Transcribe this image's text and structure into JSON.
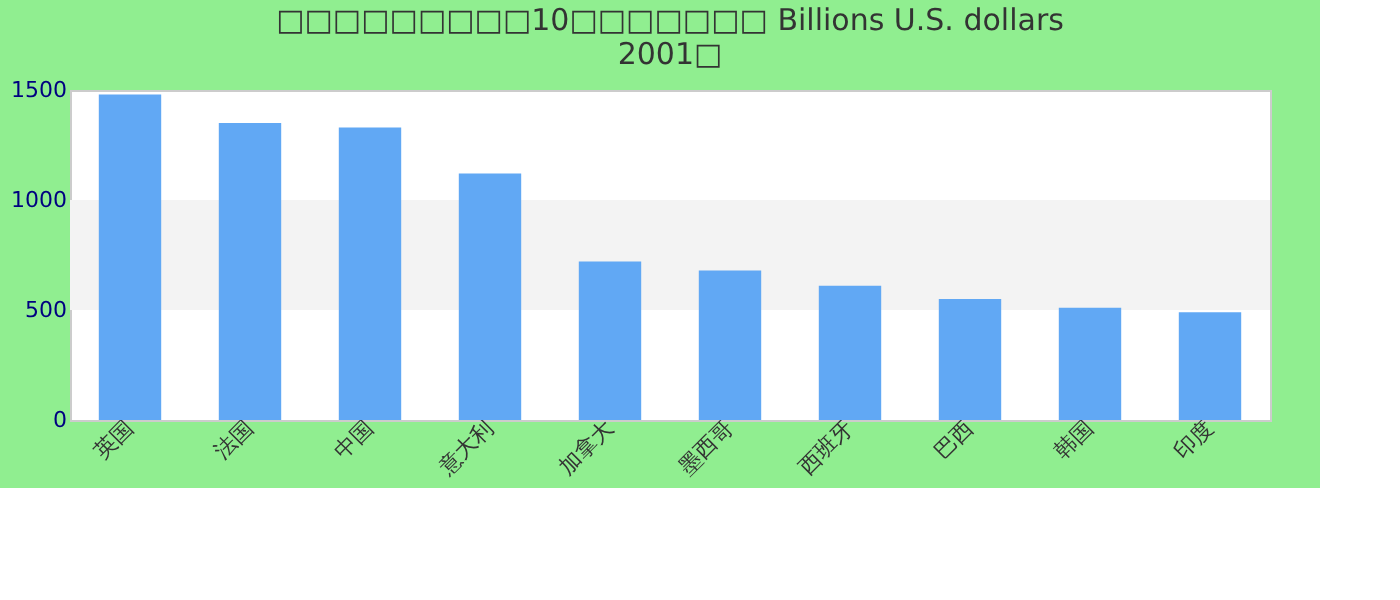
{
  "chart_data": {
    "type": "bar",
    "title": [
      "□□□□□□□□□10□□□□□□□ Billions U.S. dollars",
      "2001□"
    ],
    "categories": [
      "英国",
      "法国",
      "中国",
      "意大利",
      "加拿大",
      "墨西哥",
      "西班牙",
      "巴西",
      "韩国",
      "印度"
    ],
    "values": [
      1480,
      1350,
      1330,
      1120,
      720,
      680,
      610,
      550,
      510,
      490
    ],
    "color": "#61a8f4",
    "ylim": [
      0,
      1500
    ],
    "yticks": [
      0,
      500,
      1000,
      1500
    ],
    "bands": [
      {
        "axis": "y",
        "from": 500,
        "to": 1000,
        "color": "#f3f3f3"
      }
    ],
    "grid": false
  }
}
